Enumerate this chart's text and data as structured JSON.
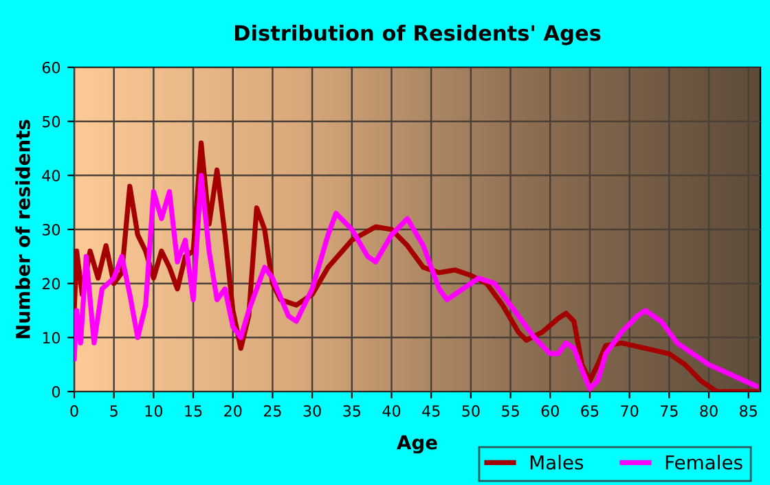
{
  "chart_data": {
    "type": "line",
    "title": "Distribution of Residents' Ages",
    "xlabel": "Age",
    "ylabel": "Number of residents",
    "xlim": [
      0,
      86.5
    ],
    "ylim": [
      0,
      60
    ],
    "xticks": [
      0,
      5,
      10,
      15,
      20,
      25,
      30,
      35,
      40,
      45,
      50,
      55,
      60,
      65,
      70,
      75,
      80,
      85
    ],
    "yticks": [
      0,
      10,
      20,
      30,
      40,
      50,
      60
    ],
    "grid": true,
    "legend": "bottom right",
    "line_style": "solid",
    "marker": "none",
    "series": [
      {
        "name": "Males",
        "color": "#a50000",
        "x": [
          0,
          0.3,
          1,
          2,
          3,
          4,
          5,
          6,
          7,
          8,
          9,
          10,
          11,
          12,
          13,
          14,
          15,
          16,
          17,
          18,
          19,
          20,
          21,
          22,
          23,
          24,
          25,
          26,
          28,
          30,
          32,
          35,
          38,
          40,
          42,
          44,
          46,
          48,
          50,
          52,
          54,
          56,
          57,
          59,
          61,
          62,
          63,
          64,
          65,
          66,
          67,
          69,
          72,
          75,
          77,
          79,
          81,
          83,
          86
        ],
        "values": [
          15,
          26,
          18,
          26,
          21,
          27,
          20,
          22,
          38,
          29,
          26,
          21,
          26,
          23,
          19,
          25,
          26,
          46,
          31,
          41,
          29,
          15,
          8,
          14,
          34,
          30,
          20,
          17,
          16,
          18,
          23,
          28,
          30.5,
          30,
          27,
          23,
          22,
          22.5,
          21.5,
          20,
          16,
          11,
          9.5,
          11,
          13.5,
          14.5,
          13,
          5,
          2,
          5,
          8.5,
          9,
          8,
          7,
          5,
          2,
          0,
          0,
          0
        ]
      },
      {
        "name": "Females",
        "color": "#ff00ff",
        "x": [
          0,
          0.3,
          0.8,
          1.5,
          2.5,
          3.5,
          5,
          6,
          7,
          8,
          9,
          10,
          11,
          12,
          13,
          14,
          15,
          16,
          17,
          18,
          19,
          20,
          21,
          22,
          24,
          25,
          27,
          28,
          30,
          32,
          33,
          35,
          37,
          38,
          40,
          42,
          44,
          46,
          47,
          49,
          51,
          53,
          55,
          58,
          60,
          61,
          62,
          63,
          64,
          65,
          66,
          67,
          69,
          71,
          72,
          74,
          76,
          78,
          80,
          83,
          86
        ],
        "values": [
          6,
          15,
          9,
          25,
          9,
          19,
          21,
          25,
          18,
          10,
          16,
          37,
          32,
          37,
          24,
          28,
          17,
          40,
          26,
          17,
          19,
          12,
          10,
          15,
          23,
          21,
          14,
          13,
          19,
          29,
          33,
          30,
          25,
          24,
          29,
          32,
          27,
          19,
          17,
          19,
          21,
          20,
          16,
          10,
          7,
          7,
          9,
          8,
          4,
          0.5,
          2,
          7,
          11,
          14,
          15,
          13,
          9,
          7,
          5,
          3,
          1
        ]
      }
    ]
  }
}
